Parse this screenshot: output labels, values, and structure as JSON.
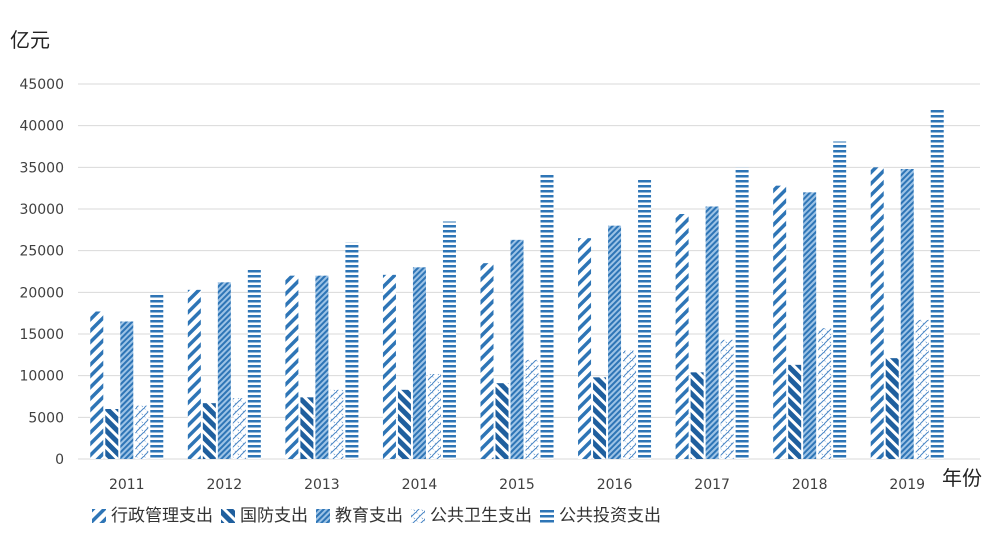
{
  "chart_data": {
    "type": "bar",
    "ylabel": "亿元",
    "xlabel": "年份",
    "ylim": [
      0,
      45000
    ],
    "y_ticks": [
      0,
      5000,
      10000,
      15000,
      20000,
      25000,
      30000,
      35000,
      40000,
      45000
    ],
    "grid": true,
    "legend_position": "bottom",
    "categories": [
      "2011",
      "2012",
      "2013",
      "2014",
      "2015",
      "2016",
      "2017",
      "2018",
      "2019"
    ],
    "series": [
      {
        "name": "行政管理支出",
        "pattern": "diag-light",
        "color": "#2e75b6",
        "values": [
          17700,
          20300,
          22000,
          22100,
          23500,
          26500,
          29400,
          32800,
          35000
        ]
      },
      {
        "name": "国防支出",
        "pattern": "diag-heavy-back",
        "color": "#1f5f9e",
        "values": [
          6000,
          6700,
          7400,
          8300,
          9100,
          9800,
          10400,
          11300,
          12100
        ]
      },
      {
        "name": "教育支出",
        "pattern": "dense",
        "color": "#2e75b6",
        "values": [
          16500,
          21200,
          22000,
          23000,
          26300,
          28000,
          30300,
          32000,
          34800
        ]
      },
      {
        "name": "公共卫生支出",
        "pattern": "cross",
        "color": "#4a86c5",
        "values": [
          6400,
          7300,
          8300,
          10200,
          11900,
          13000,
          14300,
          15700,
          16700
        ]
      },
      {
        "name": "公共投资支出",
        "pattern": "horizontal",
        "color": "#2e75b6",
        "values": [
          20000,
          22800,
          26000,
          28500,
          34300,
          33600,
          35000,
          38100,
          42100
        ]
      }
    ]
  }
}
